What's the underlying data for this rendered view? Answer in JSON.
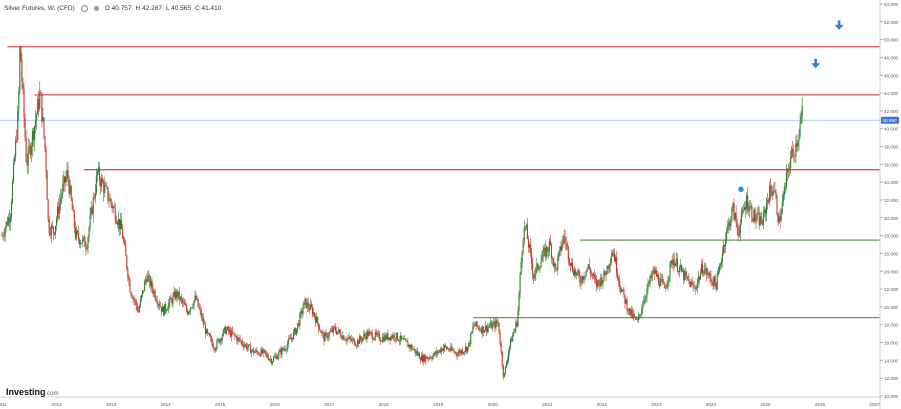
{
  "header": {
    "instrument": "Silver Futures, W, (CFD)",
    "open": "O 40.757",
    "high": "H 42.287",
    "low": "L 40.565",
    "close": "C 41.410"
  },
  "watermark": {
    "brand": "Investing",
    "suffix": ".com"
  },
  "price_tag": "40.950",
  "colors": {
    "resistance": "#e05050",
    "support": "#6e9a50",
    "current_price": "#9ab8e6",
    "price_tag_bg": "#3a72d8",
    "up_candle": "#2e7d32",
    "down_candle": "#c0392b",
    "arrow": "#3a7dd8",
    "marker": "#2b8fe0"
  },
  "chart_data": {
    "type": "candlestick",
    "title": "Silver Futures, W, (CFD)",
    "xlabel": "",
    "ylabel": "",
    "xlim": [
      2011,
      2027.1
    ],
    "ylim": [
      10,
      54
    ],
    "yticks": [
      "10.000",
      "12.000",
      "14.000",
      "16.000",
      "18.000",
      "20.000",
      "22.000",
      "24.000",
      "26.000",
      "28.000",
      "30.000",
      "32.000",
      "34.000",
      "36.000",
      "38.000",
      "40.000",
      "42.000",
      "44.000",
      "46.000",
      "48.000",
      "50.000",
      "52.000",
      "54.000"
    ],
    "xticks": [
      {
        "x": 2011,
        "label": "2011"
      },
      {
        "x": 2012,
        "label": "2012"
      },
      {
        "x": 2013,
        "label": "2013"
      },
      {
        "x": 2014,
        "label": "2014"
      },
      {
        "x": 2015,
        "label": "2015"
      },
      {
        "x": 2016,
        "label": "2016"
      },
      {
        "x": 2017,
        "label": "2017"
      },
      {
        "x": 2018,
        "label": "2018"
      },
      {
        "x": 2019,
        "label": "2019"
      },
      {
        "x": 2020,
        "label": "2020"
      },
      {
        "x": 2021,
        "label": "2021"
      },
      {
        "x": 2022,
        "label": "2022"
      },
      {
        "x": 2023,
        "label": "2023"
      },
      {
        "x": 2024,
        "label": "2024"
      },
      {
        "x": 2025,
        "label": "2025"
      },
      {
        "x": 2026,
        "label": "2026"
      },
      {
        "x": 2027,
        "label": "2027"
      }
    ],
    "price_path": [
      [
        2011.0,
        28.0
      ],
      [
        2011.15,
        30.5
      ],
      [
        2011.3,
        42.0
      ],
      [
        2011.33,
        49.5
      ],
      [
        2011.45,
        36.0
      ],
      [
        2011.6,
        40.5
      ],
      [
        2011.7,
        44.0
      ],
      [
        2011.8,
        37.0
      ],
      [
        2011.85,
        29.0
      ],
      [
        2011.95,
        28.5
      ],
      [
        2012.1,
        33.0
      ],
      [
        2012.2,
        35.0
      ],
      [
        2012.35,
        28.0
      ],
      [
        2012.55,
        27.0
      ],
      [
        2012.75,
        35.0
      ],
      [
        2012.9,
        33.0
      ],
      [
        2013.05,
        31.0
      ],
      [
        2013.2,
        28.5
      ],
      [
        2013.35,
        22.0
      ],
      [
        2013.5,
        19.5
      ],
      [
        2013.65,
        23.5
      ],
      [
        2013.8,
        21.5
      ],
      [
        2013.95,
        19.5
      ],
      [
        2014.2,
        21.5
      ],
      [
        2014.4,
        19.5
      ],
      [
        2014.55,
        21.0
      ],
      [
        2014.75,
        17.0
      ],
      [
        2014.9,
        15.5
      ],
      [
        2015.1,
        17.5
      ],
      [
        2015.3,
        16.5
      ],
      [
        2015.6,
        15.0
      ],
      [
        2015.8,
        14.8
      ],
      [
        2015.95,
        14.0
      ],
      [
        2016.2,
        15.5
      ],
      [
        2016.4,
        17.5
      ],
      [
        2016.55,
        20.5
      ],
      [
        2016.7,
        19.5
      ],
      [
        2016.9,
        16.5
      ],
      [
        2017.1,
        17.5
      ],
      [
        2017.3,
        16.5
      ],
      [
        2017.5,
        16.0
      ],
      [
        2017.7,
        17.0
      ],
      [
        2017.95,
        16.5
      ],
      [
        2018.2,
        16.8
      ],
      [
        2018.5,
        15.5
      ],
      [
        2018.7,
        14.2
      ],
      [
        2018.9,
        14.5
      ],
      [
        2019.1,
        15.5
      ],
      [
        2019.35,
        14.8
      ],
      [
        2019.55,
        15.5
      ],
      [
        2019.65,
        18.0
      ],
      [
        2019.8,
        17.5
      ],
      [
        2019.95,
        17.8
      ],
      [
        2020.1,
        18.2
      ],
      [
        2020.2,
        12.0
      ],
      [
        2020.3,
        15.5
      ],
      [
        2020.45,
        18.5
      ],
      [
        2020.55,
        28.0
      ],
      [
        2020.6,
        29.0
      ],
      [
        2020.75,
        23.5
      ],
      [
        2020.9,
        25.5
      ],
      [
        2021.05,
        27.0
      ],
      [
        2021.15,
        24.0
      ],
      [
        2021.3,
        28.0
      ],
      [
        2021.45,
        24.5
      ],
      [
        2021.6,
        23.0
      ],
      [
        2021.75,
        24.5
      ],
      [
        2021.9,
        22.5
      ],
      [
        2022.05,
        23.5
      ],
      [
        2022.2,
        26.5
      ],
      [
        2022.35,
        22.0
      ],
      [
        2022.5,
        19.5
      ],
      [
        2022.65,
        18.2
      ],
      [
        2022.8,
        21.5
      ],
      [
        2022.95,
        24.0
      ],
      [
        2023.15,
        22.0
      ],
      [
        2023.3,
        25.5
      ],
      [
        2023.5,
        23.5
      ],
      [
        2023.7,
        22.0
      ],
      [
        2023.85,
        24.5
      ],
      [
        2023.95,
        23.5
      ],
      [
        2024.1,
        22.5
      ],
      [
        2024.25,
        27.5
      ],
      [
        2024.4,
        31.0
      ],
      [
        2024.5,
        28.5
      ],
      [
        2024.65,
        32.0
      ],
      [
        2024.8,
        30.0
      ],
      [
        2024.95,
        29.5
      ],
      [
        2025.05,
        32.5
      ],
      [
        2025.15,
        33.5
      ],
      [
        2025.25,
        29.5
      ],
      [
        2025.35,
        33.0
      ],
      [
        2025.45,
        36.5
      ],
      [
        2025.55,
        38.0
      ],
      [
        2025.62,
        40.0
      ],
      [
        2025.68,
        42.0
      ]
    ],
    "annotations": {
      "resistance_lines": [
        {
          "y": 49.2,
          "x_start": 2011.1,
          "x_end": 2027.1
        },
        {
          "y": 43.8,
          "x_start": 2011.6,
          "x_end": 2027.1
        },
        {
          "y": 35.4,
          "x_start": 2012.5,
          "x_end": 2027.1
        }
      ],
      "support_lines": [
        {
          "y": 27.5,
          "x_start": 2021.6,
          "x_end": 2027.1
        },
        {
          "y": 18.8,
          "x_start": 2019.65,
          "x_end": 2027.1
        }
      ],
      "current_price_line": {
        "y": 40.95
      },
      "down_arrows": [
        {
          "x": 2026.35,
          "y": 51.6
        },
        {
          "x": 2025.92,
          "y": 47.3
        }
      ],
      "event_marker": {
        "x": 2024.55,
        "y": 33.2
      }
    },
    "grid": false,
    "legend": "none"
  }
}
